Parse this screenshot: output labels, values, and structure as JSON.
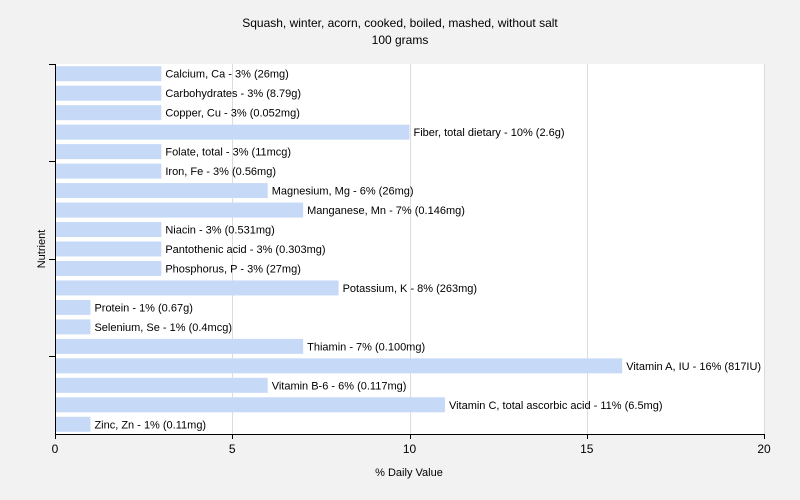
{
  "chart_data": {
    "type": "bar",
    "orientation": "horizontal",
    "title": "Squash, winter, acorn, cooked, boiled, mashed, without salt",
    "subtitle": "100 grams",
    "xlabel": "% Daily Value",
    "ylabel": "Nutrient",
    "xlim": [
      0,
      20
    ],
    "xticks": [
      0,
      5,
      10,
      15,
      20
    ],
    "grid": true,
    "bar_color": "#c6d9f7",
    "gridline_color": "#dcdcdc",
    "categories": [
      "Calcium, Ca",
      "Carbohydrates",
      "Copper, Cu",
      "Fiber, total dietary",
      "Folate, total",
      "Iron, Fe",
      "Magnesium, Mg",
      "Manganese, Mn",
      "Niacin",
      "Pantothenic acid",
      "Phosphorus, P",
      "Potassium, K",
      "Protein",
      "Selenium, Se",
      "Thiamin",
      "Vitamin A, IU",
      "Vitamin B-6",
      "Vitamin C, total ascorbic acid",
      "Zinc, Zn"
    ],
    "values": [
      3,
      3,
      3,
      10,
      3,
      3,
      6,
      7,
      3,
      3,
      3,
      8,
      1,
      1,
      7,
      16,
      6,
      11,
      1
    ],
    "labels": [
      "Calcium, Ca - 3% (26mg)",
      "Carbohydrates - 3% (8.79g)",
      "Copper, Cu - 3% (0.052mg)",
      "Fiber, total dietary - 10% (2.6g)",
      "Folate, total - 3% (11mcg)",
      "Iron, Fe - 3% (0.56mg)",
      "Magnesium, Mg - 6% (26mg)",
      "Manganese, Mn - 7% (0.146mg)",
      "Niacin - 3% (0.531mg)",
      "Pantothenic acid - 3% (0.303mg)",
      "Phosphorus, P - 3% (27mg)",
      "Potassium, K - 8% (263mg)",
      "Protein - 1% (0.67g)",
      "Selenium, Se - 1% (0.4mcg)",
      "Thiamin - 7% (0.100mg)",
      "Vitamin A, IU - 16% (817IU)",
      "Vitamin B-6 - 6% (0.117mg)",
      "Vitamin C, total ascorbic acid - 11% (6.5mg)",
      "Zinc, Zn - 1% (0.11mg)"
    ]
  }
}
